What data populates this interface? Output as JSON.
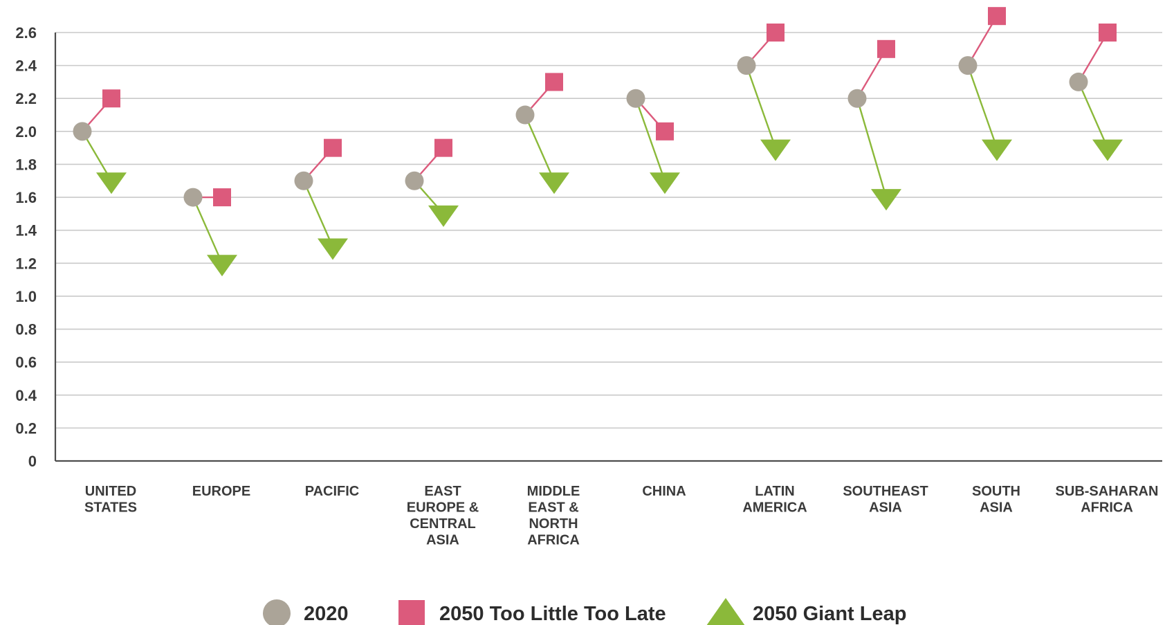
{
  "chart_data": {
    "type": "scatter",
    "title": "",
    "xlabel": "",
    "ylabel": "",
    "ylim": [
      0,
      2.6
    ],
    "yticks": [
      "0",
      "0.2",
      "0.4",
      "0.6",
      "0.8",
      "1.0",
      "1.2",
      "1.4",
      "1.6",
      "1.8",
      "2.0",
      "2.2",
      "2.4",
      "2.6"
    ],
    "grid": "horizontal",
    "legend_position": "bottom",
    "categories": [
      "UNITED STATES",
      "EUROPE",
      "PACIFIC",
      "EAST EUROPE & CENTRAL ASIA",
      "MIDDLE EAST & NORTH AFRICA",
      "CHINA",
      "LATIN AMERICA",
      "SOUTHEAST ASIA",
      "SOUTH ASIA",
      "SUB-SAHARAN AFRICA"
    ],
    "category_label_lines": [
      [
        "UNITED",
        "STATES"
      ],
      [
        "EUROPE"
      ],
      [
        "PACIFIC"
      ],
      [
        "EAST",
        "EUROPE &",
        "CENTRAL",
        "ASIA"
      ],
      [
        "MIDDLE",
        "EAST &",
        "NORTH",
        "AFRICA"
      ],
      [
        "CHINA"
      ],
      [
        "LATIN",
        "AMERICA"
      ],
      [
        "SOUTHEAST",
        "ASIA"
      ],
      [
        "SOUTH",
        "ASIA"
      ],
      [
        "SUB-SAHARAN",
        "AFRICA"
      ]
    ],
    "series": [
      {
        "name": "2020",
        "marker": "circle",
        "color": "#aba498",
        "values": [
          2.0,
          1.6,
          1.7,
          1.7,
          2.1,
          2.2,
          2.4,
          2.2,
          2.4,
          2.3
        ]
      },
      {
        "name": "2050 Too Little Too Late",
        "marker": "square",
        "color": "#dc5a7c",
        "values": [
          2.2,
          1.6,
          1.9,
          1.9,
          2.3,
          2.0,
          2.6,
          2.5,
          2.7,
          2.6
        ]
      },
      {
        "name": "2050 Giant Leap",
        "marker": "triangle-down",
        "color": "#8bb93a",
        "values": [
          1.7,
          1.2,
          1.3,
          1.5,
          1.7,
          1.7,
          1.9,
          1.6,
          1.9,
          1.9
        ]
      }
    ],
    "connector_colors": {
      "to_too_little": "#dc5a7c",
      "to_giant_leap": "#8bb93a"
    }
  }
}
